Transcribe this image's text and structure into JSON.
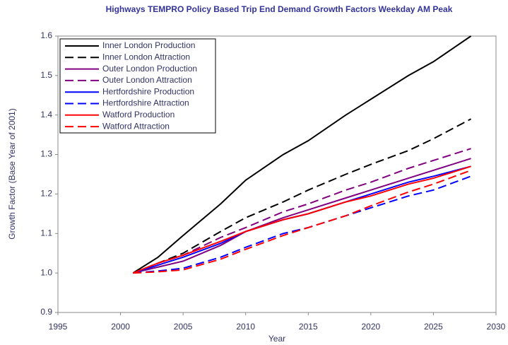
{
  "chart_data": {
    "type": "line",
    "title": "Highways TEMPRO Policy Based Trip End Demand Growth Factors Weekday AM Peak",
    "x_label": "Year",
    "y_label": "Growth Factor (Base Year of 2001)",
    "x": [
      2001,
      2003,
      2005,
      2008,
      2010,
      2013,
      2015,
      2018,
      2020,
      2023,
      2025,
      2028
    ],
    "series": [
      {
        "name": "Inner London Production",
        "color": "#000000",
        "style": "solid",
        "values": [
          1.0,
          1.04,
          1.095,
          1.175,
          1.235,
          1.3,
          1.335,
          1.4,
          1.44,
          1.5,
          1.535,
          1.6
        ]
      },
      {
        "name": "Inner London Attraction",
        "color": "#000000",
        "style": "dashed",
        "values": [
          1.0,
          1.025,
          1.05,
          1.105,
          1.14,
          1.18,
          1.21,
          1.25,
          1.275,
          1.31,
          1.34,
          1.39
        ]
      },
      {
        "name": "Outer London Production",
        "color": "#800080",
        "style": "solid",
        "values": [
          1.0,
          1.015,
          1.03,
          1.07,
          1.105,
          1.14,
          1.16,
          1.19,
          1.21,
          1.24,
          1.26,
          1.29
        ]
      },
      {
        "name": "Outer London Attraction",
        "color": "#800080",
        "style": "dashed",
        "values": [
          1.0,
          1.025,
          1.045,
          1.09,
          1.115,
          1.155,
          1.175,
          1.21,
          1.23,
          1.265,
          1.285,
          1.315
        ]
      },
      {
        "name": "Hertfordshire Production",
        "color": "#0000ff",
        "style": "solid",
        "values": [
          1.0,
          1.02,
          1.04,
          1.075,
          1.105,
          1.135,
          1.15,
          1.18,
          1.2,
          1.23,
          1.245,
          1.27
        ]
      },
      {
        "name": "Hertfordshire Attraction",
        "color": "#0000ff",
        "style": "dashed",
        "values": [
          1.0,
          1.005,
          1.012,
          1.04,
          1.065,
          1.1,
          1.115,
          1.145,
          1.165,
          1.195,
          1.21,
          1.245
        ]
      },
      {
        "name": "Watford Production",
        "color": "#ff0000",
        "style": "solid",
        "values": [
          1.0,
          1.025,
          1.045,
          1.08,
          1.105,
          1.135,
          1.15,
          1.18,
          1.195,
          1.225,
          1.24,
          1.27
        ]
      },
      {
        "name": "Watford Attraction",
        "color": "#ff0000",
        "style": "dashed",
        "values": [
          1.0,
          1.003,
          1.008,
          1.035,
          1.06,
          1.095,
          1.115,
          1.145,
          1.17,
          1.205,
          1.225,
          1.26
        ]
      }
    ],
    "xlim": [
      1995,
      2030
    ],
    "xticks": [
      1995,
      2000,
      2005,
      2010,
      2015,
      2020,
      2025,
      2030
    ],
    "ylim": [
      0.9,
      1.6
    ],
    "yticks": [
      0.9,
      {
        "value": 1,
        "label": "1.0"
      },
      1.1,
      1.2,
      1.3,
      1.4,
      1.5,
      1.6
    ],
    "grid": false,
    "legend": "top-left"
  }
}
